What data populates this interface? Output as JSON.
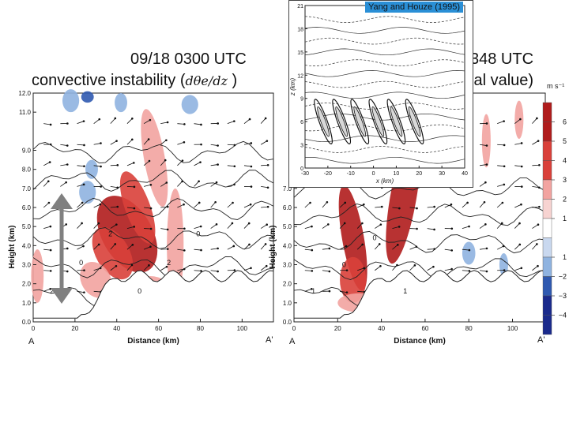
{
  "titles": {
    "left_time": "09/18  0300 UTC",
    "left_caption_prefix": "convective instability (",
    "left_caption_symbol": "dθe/dz",
    "left_caption_suffix": " )",
    "right_time_partial": "348 UTC",
    "right_caption_partial": "ial value)"
  },
  "inset": {
    "label": "Yang and Houze (1995)"
  },
  "colors": {
    "pos_dark": "#b01c1c",
    "pos_mid": "#d9403a",
    "pos_light": "#f2a3a0",
    "neg_light": "#8fb3e0",
    "neg_mid": "#2f59b0",
    "neg_dark": "#1a2a8c",
    "arrow_gray": "#808080",
    "inset_label_bg": "#2a8fd6"
  },
  "chart_data": [
    {
      "type": "heatmap",
      "title": "09/18 0300 UTC convective instability",
      "xlabel": "Distance (km)",
      "ylabel": "Height (km)",
      "x_ticks": [
        0,
        20,
        40,
        60,
        80,
        100
      ],
      "y_ticks": [
        0.0,
        1.0,
        2.0,
        3.0,
        4.0,
        5.0,
        6.0,
        7.0,
        8.0,
        9.0,
        11.0,
        12.0
      ],
      "y_tick_labels": [
        "0.0",
        "1.0",
        "2.0",
        "3.0",
        "4.0",
        "5.0",
        "6.0",
        "7.0",
        "8.0",
        "9.0",
        "11.0",
        "12.0"
      ],
      "xlim": [
        0,
        115
      ],
      "ylim": [
        0,
        12
      ],
      "corner_labels": [
        "A",
        "A'"
      ],
      "contour_labels": [
        "2",
        "0",
        "2",
        "0",
        "2",
        "0"
      ]
    },
    {
      "type": "heatmap",
      "title": "348 UTC",
      "xlabel": "Distance (km)",
      "ylabel": "Height (km)",
      "x_ticks": [
        0,
        20,
        40,
        60,
        80,
        100
      ],
      "y_ticks": [
        0.0,
        1.0,
        2.0,
        3.0,
        4.0,
        5.0,
        6.0,
        7.0
      ],
      "y_tick_labels": [
        "0.0",
        "1.0",
        "2.0",
        "3.0",
        "4.0",
        "5.0",
        "6.0",
        "7.0"
      ],
      "xlim": [
        0,
        115
      ],
      "ylim": [
        0,
        12
      ],
      "corner_labels": [
        "A",
        "A'"
      ],
      "contour_labels": [
        "1",
        "0",
        "0",
        "1"
      ]
    },
    {
      "type": "heatmap",
      "title": "colorbar",
      "unit": "m s⁻¹",
      "levels": [
        6,
        5,
        4,
        3,
        2,
        1,
        1,
        -2,
        -3,
        -4
      ],
      "level_labels": [
        "6",
        "5",
        "4",
        "3",
        "2",
        "1",
        "1",
        "−2",
        "−3",
        "−4"
      ]
    },
    {
      "type": "heatmap",
      "title": "Yang and Houze (1995)",
      "xlabel": "x (km)",
      "ylabel": "z (km)",
      "x_ticks": [
        -30,
        -20,
        -10,
        0,
        10,
        20,
        30,
        40
      ],
      "y_ticks": [
        0,
        3,
        6,
        9,
        12,
        15,
        18,
        21
      ],
      "xlim": [
        -30,
        40
      ],
      "ylim": [
        0,
        21
      ]
    }
  ]
}
